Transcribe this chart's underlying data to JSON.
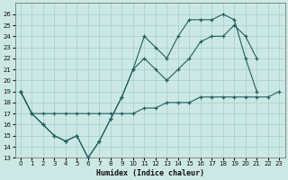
{
  "xlabel": "Humidex (Indice chaleur)",
  "xlim": [
    -0.5,
    23.5
  ],
  "ylim": [
    13,
    27
  ],
  "yticks": [
    13,
    14,
    15,
    16,
    17,
    18,
    19,
    20,
    21,
    22,
    23,
    24,
    25,
    26
  ],
  "xticks": [
    0,
    1,
    2,
    3,
    4,
    5,
    6,
    7,
    8,
    9,
    10,
    11,
    12,
    13,
    14,
    15,
    16,
    17,
    18,
    19,
    20,
    21,
    22,
    23
  ],
  "bg_color": "#cce8e4",
  "line_color": "#206060",
  "grid_color": "#a8d4d0",
  "series": [
    {
      "x": [
        0,
        1,
        2,
        3,
        4,
        5,
        6,
        7,
        8,
        9,
        10,
        11,
        12,
        13,
        14,
        15,
        16,
        17,
        18,
        19,
        20,
        21,
        22,
        23
      ],
      "y": [
        19,
        17,
        17,
        17,
        17,
        17,
        17,
        17,
        17,
        17,
        17,
        17.5,
        17.5,
        18,
        18,
        18,
        18.5,
        18.5,
        18.5,
        18.5,
        18.5,
        18.5,
        18.5,
        19
      ]
    },
    {
      "x": [
        0,
        1,
        2,
        3,
        4,
        5,
        6,
        7,
        8,
        9,
        10,
        11,
        12,
        13,
        14,
        15,
        16,
        17,
        18,
        19,
        20,
        21
      ],
      "y": [
        19,
        17,
        16,
        15,
        14.5,
        15,
        13,
        14.5,
        16.5,
        18.5,
        21,
        22,
        21,
        20,
        21,
        22,
        23.5,
        24,
        24,
        25,
        24,
        22
      ]
    },
    {
      "x": [
        0,
        1,
        2,
        3,
        4,
        5,
        6,
        7,
        8,
        9,
        10,
        11,
        12,
        13,
        14,
        15,
        16,
        17,
        18,
        19,
        20,
        21
      ],
      "y": [
        19,
        17,
        16,
        15,
        14.5,
        15,
        13,
        14.5,
        16.5,
        18.5,
        21,
        24,
        23,
        22,
        24,
        25.5,
        25.5,
        25.5,
        26,
        25.5,
        22,
        19
      ]
    }
  ]
}
